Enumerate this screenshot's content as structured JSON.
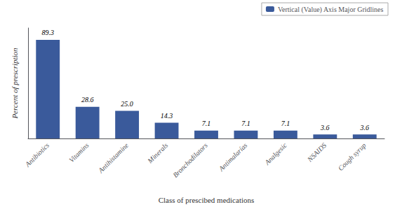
{
  "chart_data": {
    "type": "bar",
    "categories": [
      "Antibiotics",
      "Vitamins",
      "Antihistamine",
      "Minerals",
      "Bronchodilators",
      "Antimalarías",
      "Analgesic",
      "NSAIDS",
      "Cough syrup"
    ],
    "series": [
      {
        "name": "Vertical (Value) Axis Major Gridlines",
        "color": "#3a5a9b",
        "values": [
          89.3,
          28.6,
          25.0,
          14.3,
          7.1,
          7.1,
          7.1,
          3.6,
          3.6
        ],
        "value_labels": [
          "89.3",
          "28.6",
          "25.0",
          "14.3",
          "7.1",
          "7.1",
          "7.1",
          "3.6",
          "3.6"
        ]
      }
    ],
    "xlabel": "Class of prescibed medications",
    "ylabel": "Percent of prescription",
    "ylim": [
      0,
      100
    ],
    "grid": false,
    "legend": "upper right",
    "data_labels": true,
    "tick_labels": "x"
  }
}
